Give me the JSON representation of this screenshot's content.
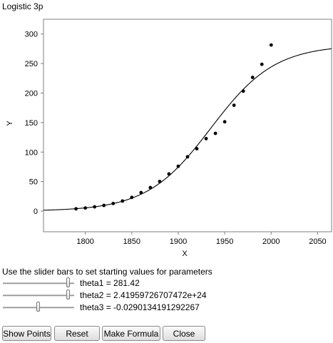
{
  "window": {
    "title": "Logistic 3p"
  },
  "chart_data": {
    "type": "scatter",
    "xlabel": "X",
    "ylabel": "Y",
    "xlim": [
      1755,
      2065
    ],
    "ylim": [
      -35,
      325
    ],
    "x_ticks": [
      1800,
      1850,
      1900,
      1950,
      2000,
      2050
    ],
    "y_ticks": [
      0,
      50,
      100,
      150,
      200,
      250,
      300
    ],
    "grid": false,
    "points": {
      "x": [
        1790,
        1800,
        1810,
        1820,
        1830,
        1840,
        1850,
        1860,
        1870,
        1880,
        1890,
        1900,
        1910,
        1920,
        1930,
        1940,
        1950,
        1960,
        1970,
        1980,
        1990,
        2000
      ],
      "y": [
        3.9,
        5.3,
        7.2,
        9.6,
        12.9,
        17.1,
        23.2,
        31.4,
        39.8,
        50.2,
        62.9,
        76.0,
        92.0,
        105.7,
        122.8,
        131.7,
        151.3,
        179.3,
        203.2,
        226.5,
        248.7,
        281.4
      ]
    },
    "fitted_curve": {
      "theta1": 281.42,
      "theta2": 2.4195972670747e+24,
      "theta3": -0.0290134191292267
    }
  },
  "instructions": "Use the slider bars to set starting values for parameters",
  "params": [
    {
      "label": "theta1 = 281.42",
      "slider_position": 0.91
    },
    {
      "label": "theta2 = 2.41959726707472e+24",
      "slider_position": 0.91
    },
    {
      "label": "theta3 = -0.0290134191292267",
      "slider_position": 0.49
    }
  ],
  "buttons": {
    "show_points": "Show Points",
    "reset": "Reset",
    "make_formula": "Make Formula",
    "close": "Close"
  }
}
